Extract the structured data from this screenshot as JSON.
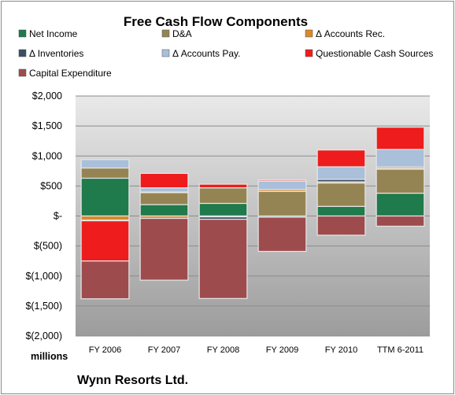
{
  "chart_data": {
    "type": "bar",
    "stacked": true,
    "title": "Free Cash Flow Components",
    "units_label": "millions",
    "company": "Wynn Resorts Ltd.",
    "categories": [
      "FY 2006",
      "FY 2007",
      "FY 2008",
      "FY 2009",
      "FY 2010",
      "TTM 6-2011"
    ],
    "ylim": [
      -2000,
      2000
    ],
    "yticks": [
      2000,
      1500,
      1000,
      500,
      0,
      -500,
      -1000,
      -1500,
      -2000
    ],
    "ytick_labels": [
      "$2,000",
      "$1,500",
      "$1,000",
      "$500",
      "$-",
      "$(500)",
      "$(1,000)",
      "$(1,500)",
      "$(2,000)"
    ],
    "grid": true,
    "legend_position": "top",
    "series": [
      {
        "name": "Net Income",
        "color": "#1f7a4c",
        "values": [
          630,
          190,
          210,
          -20,
          160,
          380
        ]
      },
      {
        "name": "D&A",
        "color": "#958453",
        "values": [
          170,
          200,
          260,
          410,
          390,
          400
        ]
      },
      {
        "name": "Δ Accounts Rec.",
        "color": "#d88a2a",
        "values": [
          -70,
          -40,
          -15,
          30,
          20,
          20
        ]
      },
      {
        "name": "Δ Inventories",
        "color": "#3b4f63",
        "values": [
          -10,
          10,
          -40,
          0,
          40,
          20
        ]
      },
      {
        "name": "Δ Accounts Pay.",
        "color": "#a9bfda",
        "values": [
          140,
          70,
          0,
          140,
          210,
          290
        ]
      },
      {
        "name": "Questionable Cash Sources",
        "color": "#ee1c1c",
        "values": [
          -670,
          240,
          60,
          20,
          280,
          370
        ]
      },
      {
        "name": "Capital Expenditure",
        "color": "#9e4b4e",
        "values": [
          -630,
          -1030,
          -1320,
          -570,
          -320,
          -170
        ]
      }
    ]
  }
}
